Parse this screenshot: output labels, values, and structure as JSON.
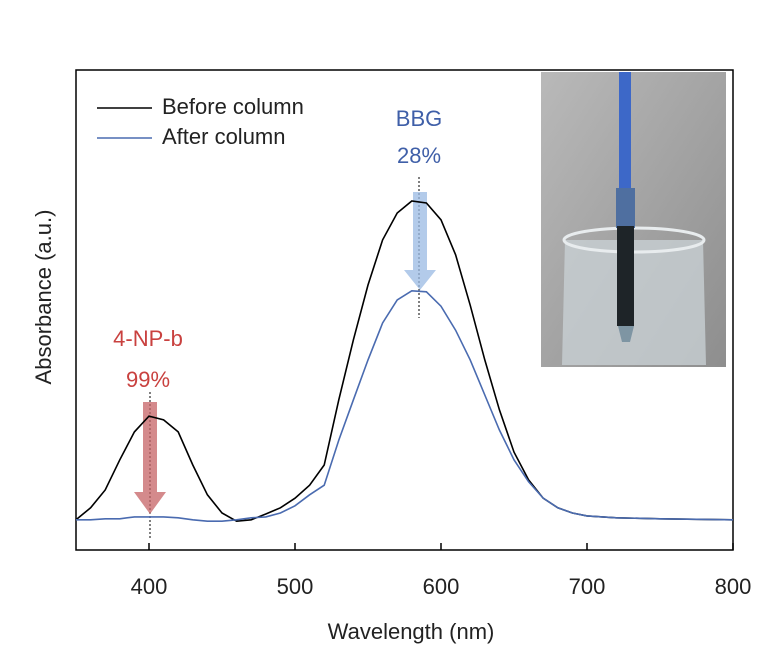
{
  "chart_data": {
    "type": "line",
    "xlabel": "Wavelength (nm)",
    "ylabel": "Absorbance (a.u.)",
    "x": [
      350,
      360,
      370,
      380,
      390,
      400,
      410,
      420,
      430,
      440,
      450,
      460,
      470,
      480,
      490,
      500,
      510,
      520,
      530,
      540,
      550,
      560,
      570,
      580,
      590,
      600,
      610,
      620,
      630,
      640,
      650,
      660,
      670,
      680,
      690,
      700,
      720,
      750,
      800
    ],
    "series": [
      {
        "name": "Before column",
        "color": "#000000",
        "values": [
          0.063,
          0.088,
          0.125,
          0.188,
          0.246,
          0.279,
          0.271,
          0.246,
          0.177,
          0.115,
          0.077,
          0.06,
          0.063,
          0.075,
          0.088,
          0.108,
          0.135,
          0.177,
          0.313,
          0.438,
          0.552,
          0.646,
          0.702,
          0.727,
          0.723,
          0.688,
          0.615,
          0.51,
          0.396,
          0.292,
          0.204,
          0.146,
          0.108,
          0.088,
          0.077,
          0.071,
          0.067,
          0.065,
          0.063
        ]
      },
      {
        "name": "After column",
        "color": "#4a6bb0",
        "values": [
          0.063,
          0.063,
          0.065,
          0.065,
          0.069,
          0.069,
          0.069,
          0.067,
          0.063,
          0.06,
          0.06,
          0.063,
          0.067,
          0.069,
          0.077,
          0.092,
          0.115,
          0.135,
          0.229,
          0.313,
          0.396,
          0.473,
          0.521,
          0.54,
          0.538,
          0.508,
          0.458,
          0.396,
          0.323,
          0.25,
          0.188,
          0.142,
          0.108,
          0.088,
          0.077,
          0.071,
          0.067,
          0.065,
          0.063
        ]
      }
    ],
    "xlim": [
      350,
      800
    ],
    "xticks": [
      400,
      500,
      600,
      700,
      800
    ],
    "ylim": [
      0,
      1
    ],
    "legend": "upper-left",
    "annotations": [
      {
        "text": "BBG",
        "color": "#3f5fa8"
      },
      {
        "text": "28%",
        "color": "#3f5fa8"
      },
      {
        "text": "4-NP-b",
        "color": "#c9413f"
      },
      {
        "text": "99%",
        "color": "#c9413f"
      }
    ]
  }
}
